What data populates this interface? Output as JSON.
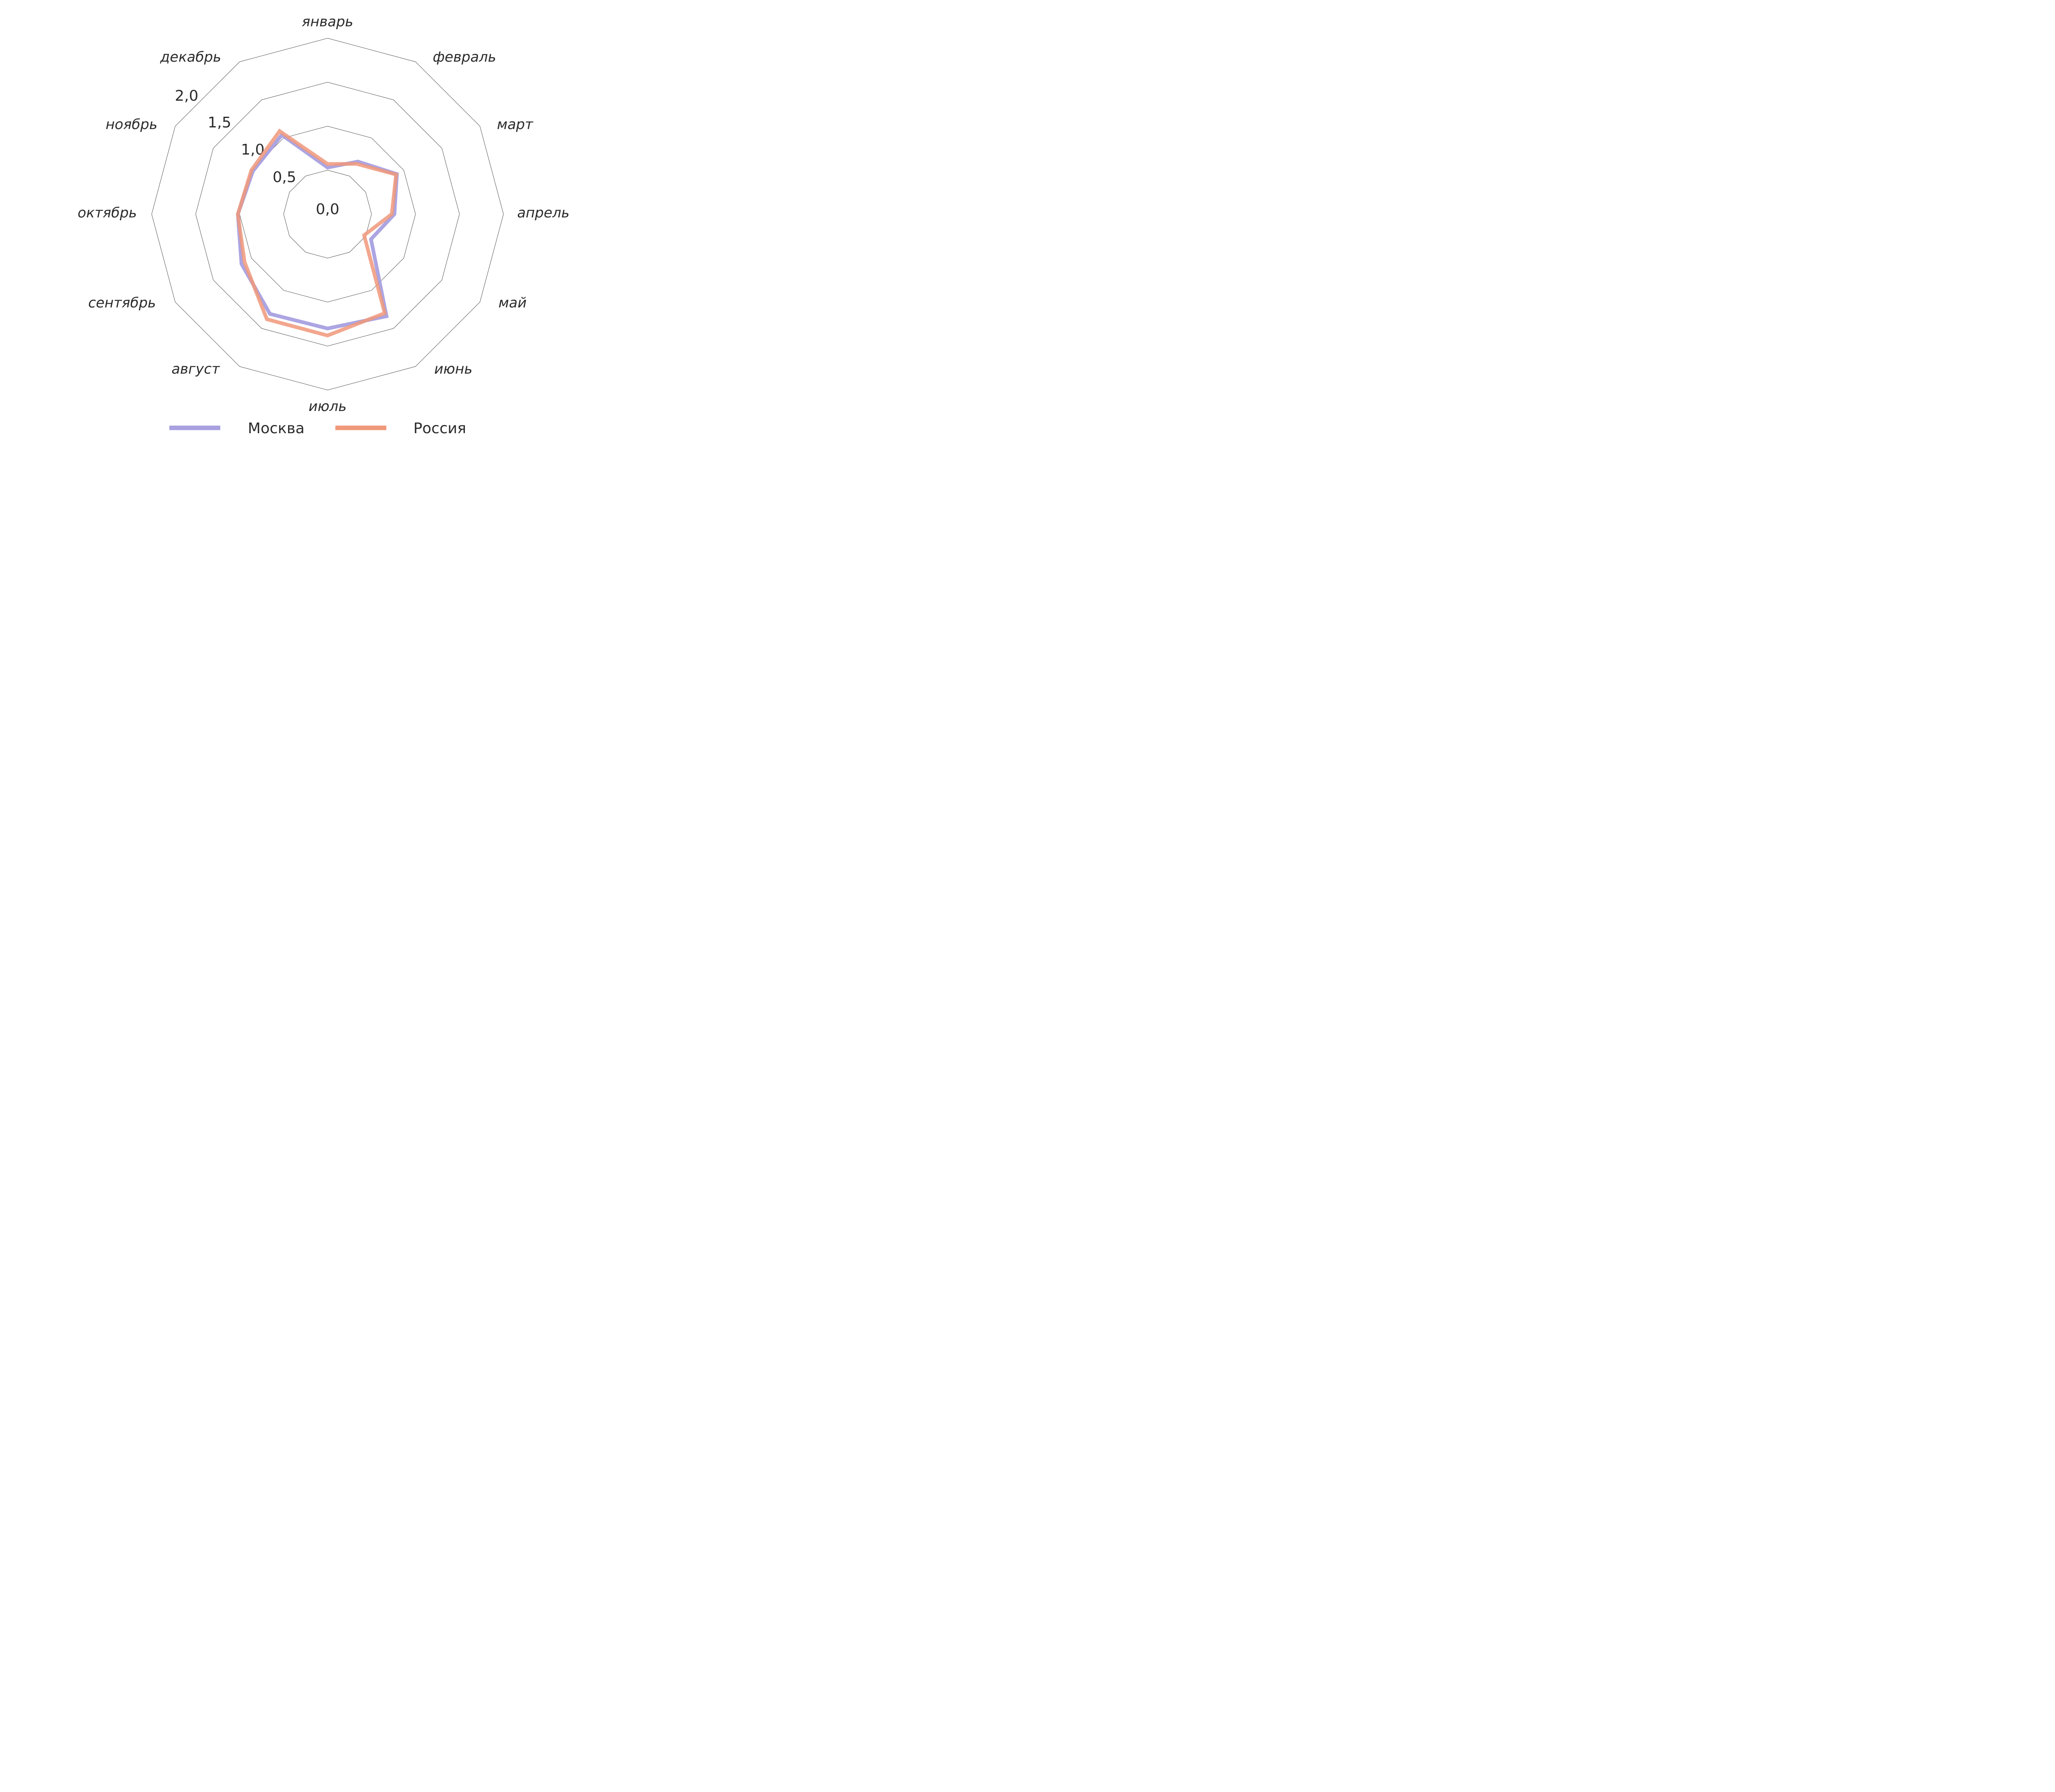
{
  "chart_data": {
    "type": "radar",
    "categories": [
      "январь",
      "февраль",
      "март",
      "апрель",
      "май",
      "июнь",
      "июль",
      "август",
      "сентябрь",
      "октябрь",
      "ноябрь",
      "декабрь"
    ],
    "series": [
      {
        "name": "Москва",
        "color": "#a8a0e0",
        "values": [
          0.53,
          0.69,
          0.91,
          0.76,
          0.57,
          1.34,
          1.3,
          1.31,
          1.13,
          1.02,
          0.98,
          1.04
        ]
      },
      {
        "name": "Россия",
        "color": "#f0987a",
        "values": [
          0.57,
          0.66,
          0.9,
          0.73,
          0.48,
          1.3,
          1.38,
          1.38,
          1.09,
          1.02,
          1.0,
          1.09
        ]
      }
    ],
    "radial_ticks": [
      "0,0",
      "0,5",
      "1,0",
      "1,5",
      "2,0"
    ],
    "rlim": [
      0,
      2.0
    ],
    "legend_position": "bottom"
  }
}
